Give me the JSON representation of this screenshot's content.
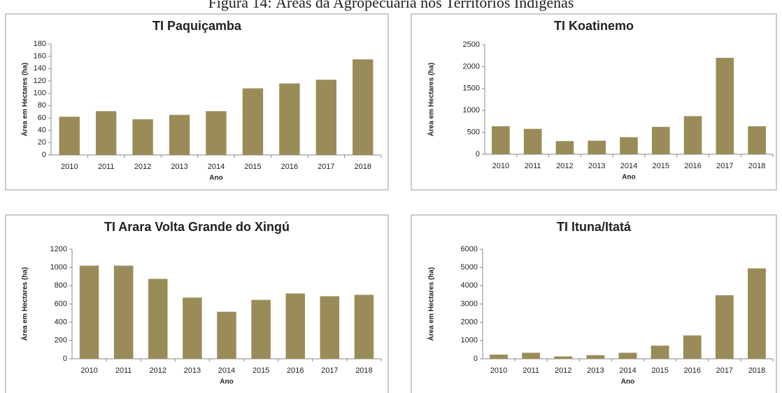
{
  "title": "Figura 14: Áreas da Agropecuária nos Territórios Indígenas",
  "chart_data": [
    {
      "type": "bar",
      "title": "TI Paquiçamba",
      "x_label": "Ano",
      "y_label": "Área em Hectares (ha)",
      "color": "#9a8c58",
      "categories": [
        "2010",
        "2011",
        "2012",
        "2013",
        "2014",
        "2015",
        "2016",
        "2017",
        "2018"
      ],
      "values": [
        62,
        71,
        58,
        65,
        71,
        108,
        116,
        122,
        155
      ],
      "ylim": [
        0,
        180
      ],
      "yticks": [
        0,
        20,
        40,
        60,
        80,
        100,
        120,
        140,
        160,
        180
      ]
    },
    {
      "type": "bar",
      "title": "TI Koatinemo",
      "x_label": "Ano",
      "y_label": "Área em Hectares (ha)",
      "color": "#9a8c58",
      "categories": [
        "2010",
        "2011",
        "2012",
        "2013",
        "2014",
        "2015",
        "2016",
        "2017",
        "2018"
      ],
      "values": [
        640,
        580,
        300,
        310,
        390,
        625,
        870,
        2200,
        640
      ],
      "ylim": [
        0,
        2500
      ],
      "yticks": [
        0,
        500,
        1000,
        1500,
        2000,
        2500
      ]
    },
    {
      "type": "bar",
      "title": "TI Arara Volta Grande do Xingú",
      "x_label": "Ano",
      "y_label": "Área em Hectares (ha)",
      "color": "#9a8c58",
      "categories": [
        "2010",
        "2011",
        "2012",
        "2013",
        "2014",
        "2015",
        "2016",
        "2017",
        "2018"
      ],
      "values": [
        1020,
        1020,
        875,
        670,
        515,
        645,
        715,
        685,
        700
      ],
      "ylim": [
        0,
        1200
      ],
      "yticks": [
        0,
        200,
        400,
        600,
        800,
        1000,
        1200
      ]
    },
    {
      "type": "bar",
      "title": "TI Ituna/Itatá",
      "x_label": "Ano",
      "y_label": "Área em Hectares (ha)",
      "color": "#9a8c58",
      "categories": [
        "2010",
        "2011",
        "2012",
        "2013",
        "2014",
        "2015",
        "2016",
        "2017",
        "2018"
      ],
      "values": [
        230,
        330,
        130,
        200,
        330,
        720,
        1280,
        3480,
        4950
      ],
      "ylim": [
        0,
        6000
      ],
      "yticks": [
        0,
        1000,
        2000,
        3000,
        4000,
        5000,
        6000
      ]
    }
  ]
}
